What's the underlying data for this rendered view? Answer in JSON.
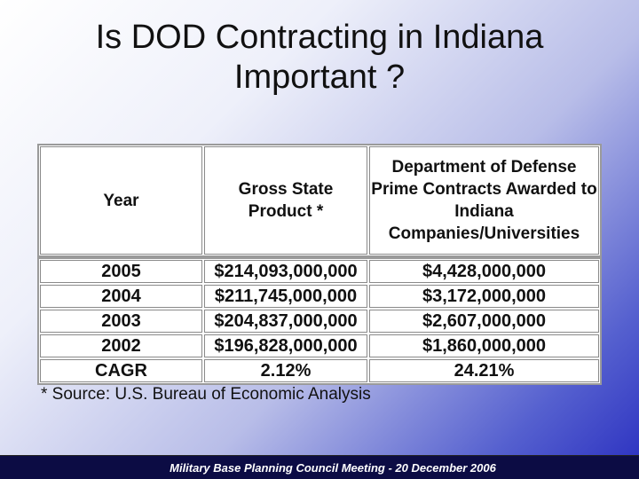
{
  "title": {
    "line1": "Is DOD Contracting in Indiana",
    "line2": "Important ?"
  },
  "table": {
    "headers": [
      "Year",
      "Gross State Product *",
      "Department of Defense Prime Contracts Awarded to Indiana Companies/Universities"
    ],
    "rows": [
      [
        "2005",
        "$214,093,000,000",
        "$4,428,000,000"
      ],
      [
        "2004",
        "$211,745,000,000",
        "$3,172,000,000"
      ],
      [
        "2003",
        "$204,837,000,000",
        "$2,607,000,000"
      ],
      [
        "2002",
        "$196,828,000,000",
        "$1,860,000,000"
      ],
      [
        "CAGR",
        "2.12%",
        "24.21%"
      ]
    ]
  },
  "source_note": "* Source: U.S. Bureau of Economic Analysis",
  "footer": "Military Base Planning Council Meeting - 20 December 2006"
}
